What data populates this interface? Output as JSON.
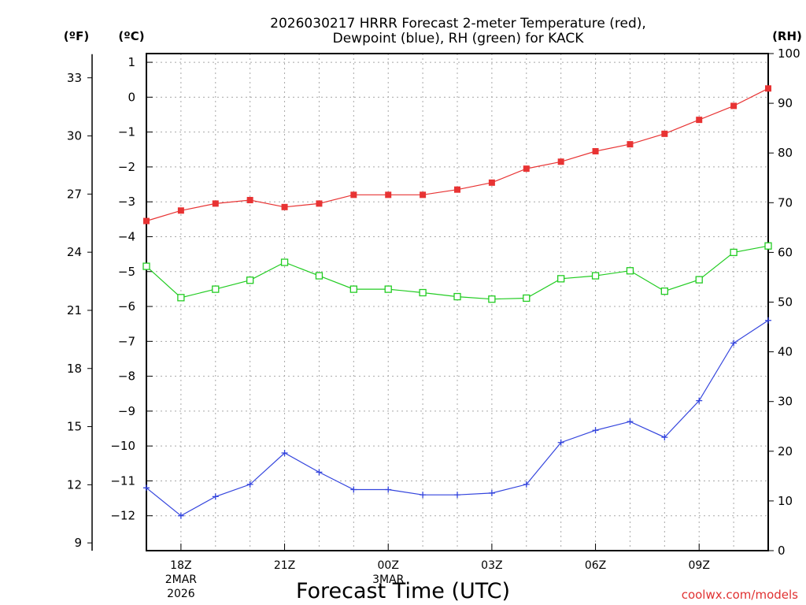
{
  "chart_data": {
    "type": "line",
    "title": [
      "2026030217 HRRR Forecast 2-meter Temperature (red),",
      "Dewpoint (blue), RH (green) for KACK"
    ],
    "left_axes": {
      "fahrenheit": {
        "label": "(ºF)",
        "ticks": [
          9,
          12,
          15,
          18,
          21,
          24,
          27,
          30,
          33
        ]
      },
      "celsius": {
        "label": "(ºC)",
        "ticks": [
          1,
          0,
          -1,
          -2,
          -3,
          -4,
          -5,
          -6,
          -7,
          -8,
          -9,
          -10,
          -11,
          -12
        ],
        "ylim": [
          -13,
          1.25
        ]
      }
    },
    "right_axis": {
      "label": "(RH)",
      "ticks": [
        0,
        10,
        20,
        30,
        40,
        50,
        60,
        70,
        80,
        90,
        100
      ],
      "ylim": [
        0,
        100
      ]
    },
    "x": {
      "range_hours": [
        0,
        18
      ],
      "major_ticks": [
        {
          "hour": 1,
          "label": "18Z"
        },
        {
          "hour": 4,
          "label": "21Z"
        },
        {
          "hour": 7,
          "label": "00Z"
        },
        {
          "hour": 10,
          "label": "03Z"
        },
        {
          "hour": 13,
          "label": "06Z"
        },
        {
          "hour": 16,
          "label": "09Z"
        }
      ],
      "date_labels": [
        {
          "hour": 1,
          "lines": [
            "2MAR",
            "2026"
          ]
        },
        {
          "hour": 7,
          "lines": [
            "3MAR"
          ]
        }
      ]
    },
    "xlabel": "Forecast Time (UTC)",
    "credit": "coolwx.com/models",
    "series": [
      {
        "name": "Temperature",
        "unit": "C",
        "color": "#e83333",
        "marker": "filled-square",
        "values": [
          -3.55,
          -3.25,
          -3.05,
          -2.95,
          -3.15,
          -3.05,
          -2.8,
          -2.8,
          -2.8,
          -2.65,
          -2.45,
          -2.05,
          -1.85,
          -1.55,
          -1.35,
          -1.05,
          -0.65,
          -0.25,
          0.25
        ]
      },
      {
        "name": "Dewpoint",
        "unit": "C",
        "color": "#3344dd",
        "marker": "plus",
        "values": [
          -11.2,
          -12.0,
          -11.45,
          -11.1,
          -10.2,
          -10.75,
          -11.25,
          -11.25,
          -11.4,
          -11.4,
          -11.35,
          -11.1,
          -9.9,
          -9.55,
          -9.3,
          -9.75,
          -8.7,
          -7.05,
          -6.4
        ]
      },
      {
        "name": "RH",
        "unit": "%",
        "color": "#22cc22",
        "marker": "open-square",
        "values": [
          57.2,
          50.9,
          52.6,
          54.4,
          58.0,
          55.3,
          52.6,
          52.6,
          51.9,
          51.1,
          50.6,
          50.8,
          54.7,
          55.3,
          56.3,
          52.2,
          54.5,
          60.0,
          61.3
        ]
      }
    ]
  }
}
